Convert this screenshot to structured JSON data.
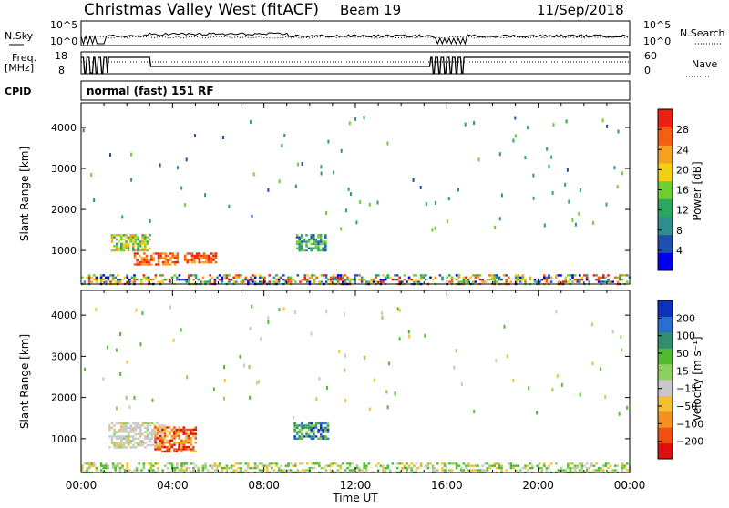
{
  "header": {
    "station": "Christmas Valley West (fitACF)",
    "beam": "Beam 19",
    "date": "11/Sep/2018"
  },
  "status_panels": {
    "nsky_label": "N.Sky",
    "nsearch_label": "N.Search",
    "freq_label_1": "Freq.",
    "freq_label_2": "[MHz]",
    "nave_label": "Nave",
    "cpid_label": "CPID",
    "cpid_text": "normal (fast) 151 RF",
    "nsky_ticks": [
      "10^5",
      "10^0"
    ],
    "nsearch_ticks": [
      "10^5",
      "10^0"
    ],
    "freq_ticks": [
      "18",
      "8"
    ],
    "nave_ticks": [
      "60",
      "0"
    ]
  },
  "chart_data": [
    {
      "type": "heatmap",
      "name": "power",
      "ylabel": "Slant Range [km]",
      "xlabel": "",
      "x_ticks": [
        "00:00",
        "04:00",
        "08:00",
        "12:00",
        "16:00",
        "20:00",
        "00:00"
      ],
      "y_ticks": [
        1000,
        2000,
        3000,
        4000
      ],
      "ylim": [
        180,
        4600
      ],
      "xlim_hours": [
        0,
        24
      ],
      "colorbar_label": "Power [dB]",
      "colorbar_ticks": [
        "4",
        "8",
        "12",
        "16",
        "20",
        "24",
        "28"
      ],
      "colorbar_colors": [
        "#0000ee",
        "#1f4faf",
        "#2f8f8f",
        "#2aa860",
        "#6ccf30",
        "#f2d010",
        "#f7a020",
        "#f46010",
        "#ee2010"
      ],
      "regions": [
        {
          "t0": 1.3,
          "t1": 3.0,
          "r0": 1000,
          "r1": 1400,
          "level": "mid"
        },
        {
          "t0": 2.3,
          "t1": 4.2,
          "r0": 650,
          "r1": 950,
          "level": "high"
        },
        {
          "t0": 4.5,
          "t1": 5.9,
          "r0": 700,
          "r1": 950,
          "level": "high"
        },
        {
          "t0": 9.4,
          "t1": 10.7,
          "r0": 1000,
          "r1": 1400,
          "level": "low"
        },
        {
          "t0": 0.0,
          "t1": 24.0,
          "r0": 200,
          "r1": 420,
          "level": "mixed"
        }
      ]
    },
    {
      "type": "heatmap",
      "name": "velocity",
      "ylabel": "Slant Range [km]",
      "xlabel": "Time UT",
      "x_ticks": [
        "00:00",
        "04:00",
        "08:00",
        "12:00",
        "16:00",
        "20:00",
        "00:00"
      ],
      "y_ticks": [
        1000,
        2000,
        3000,
        4000
      ],
      "ylim": [
        180,
        4600
      ],
      "xlim_hours": [
        0,
        24
      ],
      "colorbar_label": "Velocity [m s⁻¹]",
      "colorbar_ticks": [
        "200",
        "100",
        "50",
        "15",
        "−15",
        "−50",
        "−100",
        "−200"
      ],
      "colorbar_colors": [
        "#1030c0",
        "#2a6fd0",
        "#2f8f6f",
        "#50bb30",
        "#8ed060",
        "#c8c8c8",
        "#f2c030",
        "#f59020",
        "#f25010",
        "#e01010"
      ],
      "regions": [
        {
          "t0": 1.2,
          "t1": 3.6,
          "r0": 800,
          "r1": 1400,
          "level": "neutral"
        },
        {
          "t0": 3.2,
          "t1": 5.0,
          "r0": 700,
          "r1": 1300,
          "level": "negative"
        },
        {
          "t0": 9.3,
          "t1": 10.8,
          "r0": 1000,
          "r1": 1400,
          "level": "positive"
        },
        {
          "t0": 0.0,
          "t1": 24.0,
          "r0": 200,
          "r1": 420,
          "level": "mixed"
        }
      ]
    }
  ]
}
